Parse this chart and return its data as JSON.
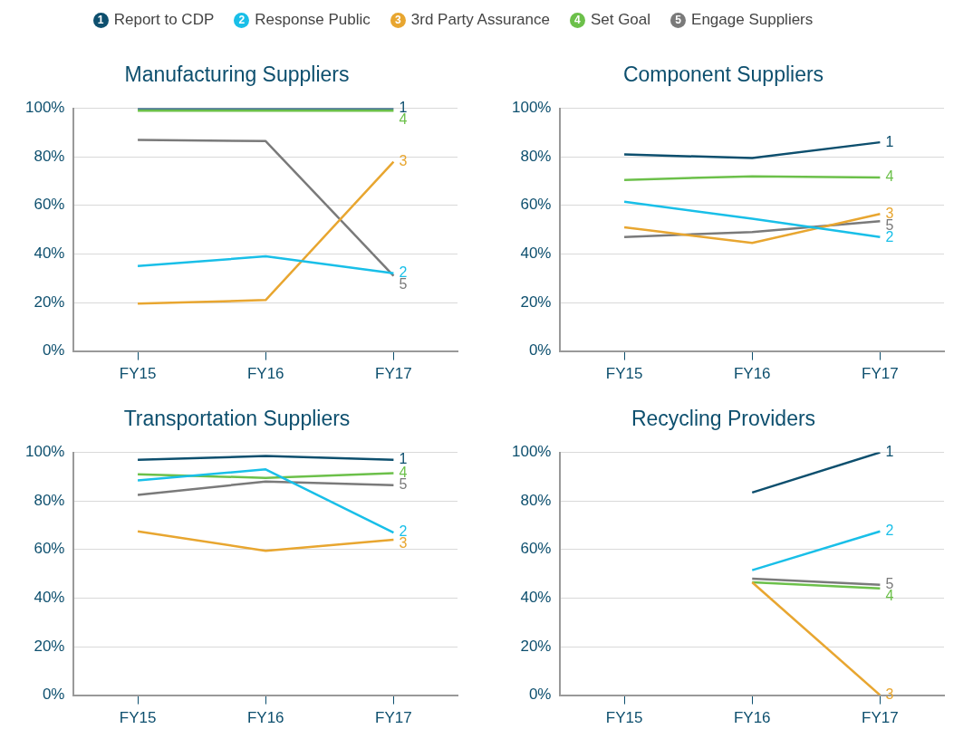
{
  "chart_data": [
    {
      "type": "line",
      "title": "Manufacturing Suppliers",
      "categories": [
        "FY15",
        "FY16",
        "FY17"
      ],
      "ylim": [
        0,
        100
      ],
      "yticks": [
        {
          "value": 0,
          "label": "0%"
        },
        {
          "value": 20,
          "label": "20%"
        },
        {
          "value": 40,
          "label": "40%"
        },
        {
          "value": 60,
          "label": "60%"
        },
        {
          "value": 80,
          "label": "80%"
        },
        {
          "value": 100,
          "label": "100%"
        }
      ],
      "grid": "y",
      "legend": "top",
      "series": [
        {
          "name": "Report to CDP",
          "color": "#0d4f6e",
          "values": [
            100,
            100,
            100
          ]
        },
        {
          "name": "Response Public",
          "color": "#19bfe8",
          "values": [
            35,
            39,
            32
          ]
        },
        {
          "name": "3rd Party Assurance",
          "color": "#e8a630",
          "values": [
            19.5,
            21,
            78
          ]
        },
        {
          "name": "Set Goal",
          "color": "#6cc04a",
          "values": [
            99,
            99,
            99
          ]
        },
        {
          "name": "Engage Suppliers",
          "color": "#7a7a7a",
          "values": [
            87,
            86.5,
            31
          ]
        }
      ],
      "annotations": [
        {
          "text": "1",
          "x": "FY17",
          "y": 100
        },
        {
          "text": "2",
          "x": "FY17",
          "y": 32
        },
        {
          "text": "3",
          "x": "FY17",
          "y": 78
        },
        {
          "text": "4",
          "x": "FY17",
          "y": 99
        },
        {
          "text": "5",
          "x": "FY17",
          "y": 31
        }
      ]
    },
    {
      "type": "line",
      "title": "Component Suppliers",
      "categories": [
        "FY15",
        "FY16",
        "FY17"
      ],
      "ylim": [
        0,
        100
      ],
      "yticks": [
        {
          "value": 0,
          "label": "0%"
        },
        {
          "value": 20,
          "label": "20%"
        },
        {
          "value": 40,
          "label": "40%"
        },
        {
          "value": 60,
          "label": "60%"
        },
        {
          "value": 80,
          "label": "80%"
        },
        {
          "value": 100,
          "label": "100%"
        }
      ],
      "grid": "y",
      "series": [
        {
          "color": "#0d4f6e",
          "values": [
            81,
            79.5,
            86
          ]
        },
        {
          "color": "#19bfe8",
          "values": [
            61.5,
            54.5,
            47
          ]
        },
        {
          "color": "#e8a630",
          "values": [
            51,
            44.5,
            56.5
          ]
        },
        {
          "color": "#6cc04a",
          "values": [
            70.5,
            72,
            71.5
          ]
        },
        {
          "color": "#7a7a7a",
          "values": [
            47,
            49,
            53.5
          ]
        }
      ],
      "annotations": [
        {
          "text": "1",
          "x": "FY17",
          "y": 86
        },
        {
          "text": "2",
          "x": "FY17",
          "y": 47
        },
        {
          "text": "3",
          "x": "FY17",
          "y": 56.5
        },
        {
          "text": "4",
          "x": "FY17",
          "y": 71.5
        },
        {
          "text": "5",
          "x": "FY17",
          "y": 53.5
        }
      ]
    },
    {
      "type": "line",
      "title": "Transportation Suppliers",
      "categories": [
        "FY15",
        "FY16",
        "FY17"
      ],
      "ylim": [
        0,
        100
      ],
      "yticks": [
        {
          "value": 0,
          "label": "0%"
        },
        {
          "value": 20,
          "label": "20%"
        },
        {
          "value": 40,
          "label": "40%"
        },
        {
          "value": 60,
          "label": "60%"
        },
        {
          "value": 80,
          "label": "80%"
        },
        {
          "value": 100,
          "label": "100%"
        }
      ],
      "grid": "y",
      "series": [
        {
          "color": "#0d4f6e",
          "values": [
            97,
            98.5,
            97
          ]
        },
        {
          "color": "#19bfe8",
          "values": [
            88.5,
            93,
            67
          ]
        },
        {
          "color": "#e8a630",
          "values": [
            67.5,
            59.5,
            64
          ]
        },
        {
          "color": "#6cc04a",
          "values": [
            91,
            89.5,
            91.5
          ]
        },
        {
          "color": "#7a7a7a",
          "values": [
            82.5,
            88,
            86.5
          ]
        }
      ],
      "annotations": [
        {
          "text": "1",
          "x": "FY17",
          "y": 97
        },
        {
          "text": "2",
          "x": "FY17",
          "y": 67
        },
        {
          "text": "3",
          "x": "FY17",
          "y": 64
        },
        {
          "text": "4",
          "x": "FY17",
          "y": 91.5
        },
        {
          "text": "5",
          "x": "FY17",
          "y": 86.5
        }
      ]
    },
    {
      "type": "line",
      "title": "Recycling Providers",
      "categories": [
        "FY15",
        "FY16",
        "FY17"
      ],
      "ylim": [
        0,
        100
      ],
      "yticks": [
        {
          "value": 0,
          "label": "0%"
        },
        {
          "value": 20,
          "label": "20%"
        },
        {
          "value": 40,
          "label": "40%"
        },
        {
          "value": 60,
          "label": "60%"
        },
        {
          "value": 80,
          "label": "80%"
        },
        {
          "value": 100,
          "label": "100%"
        }
      ],
      "grid": "y",
      "series": [
        {
          "color": "#0d4f6e",
          "values": [
            null,
            83.5,
            100
          ]
        },
        {
          "color": "#19bfe8",
          "values": [
            null,
            51.5,
            67.5
          ]
        },
        {
          "color": "#e8a630",
          "values": [
            null,
            46.5,
            0
          ]
        },
        {
          "color": "#6cc04a",
          "values": [
            null,
            46.5,
            44
          ]
        },
        {
          "color": "#7a7a7a",
          "values": [
            null,
            48,
            45.5
          ]
        }
      ],
      "annotations": [
        {
          "text": "1",
          "x": "FY17",
          "y": 100
        },
        {
          "text": "2",
          "x": "FY17",
          "y": 67.5
        },
        {
          "text": "3",
          "x": "FY17",
          "y": 0
        },
        {
          "text": "4",
          "x": "FY17",
          "y": 44
        },
        {
          "text": "5",
          "x": "FY17",
          "y": 45.5
        }
      ]
    }
  ]
}
